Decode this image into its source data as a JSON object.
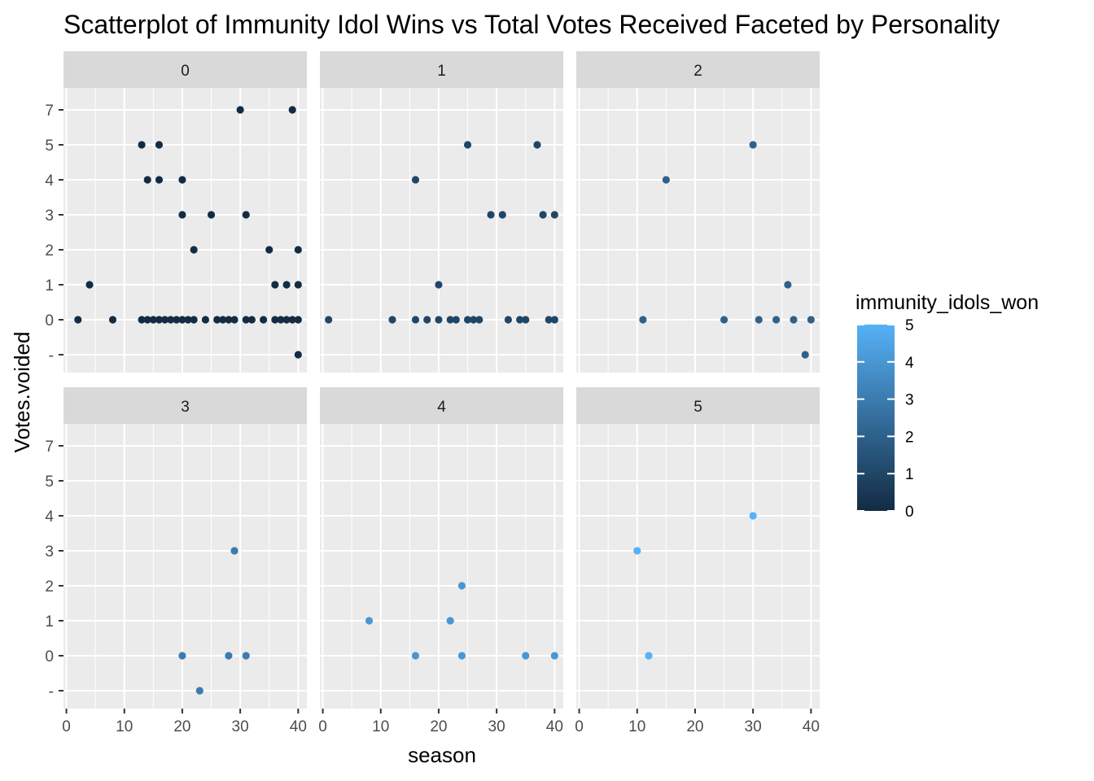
{
  "chart_data": {
    "type": "scatter",
    "title": "Scatterplot of Immunity Idol Wins vs Total Votes Received Faceted by Personality",
    "xlabel": "season",
    "ylabel": "Votes.voided",
    "xlim": [
      -0.5,
      41.5
    ],
    "x_ticks": [
      0,
      10,
      20,
      30,
      40
    ],
    "y_ticks": [
      {
        "value": -1,
        "label": "-"
      },
      {
        "value": 0,
        "label": "0"
      },
      {
        "value": 1,
        "label": "1"
      },
      {
        "value": 2,
        "label": "2"
      },
      {
        "value": 3,
        "label": "3"
      },
      {
        "value": 4,
        "label": "4"
      },
      {
        "value": 5,
        "label": "5"
      },
      {
        "value": 7,
        "label": "7"
      }
    ],
    "y_levels": [
      -1,
      0,
      1,
      2,
      3,
      4,
      5,
      7
    ],
    "grid": true,
    "legend": {
      "title": "immunity_idols_won",
      "placement": "right",
      "min": 0,
      "max": 5,
      "ticks": [
        0,
        1,
        2,
        3,
        4,
        5
      ],
      "low_color": "#132B43",
      "high_color": "#56B1F7"
    },
    "colors": {
      "panel_bg": "#EBEBEB",
      "strip_bg": "#D9D9D9",
      "grid": "#FFFFFF"
    },
    "facets": [
      {
        "label": "0",
        "color_value": 0,
        "points": [
          {
            "x": 2,
            "y": 0
          },
          {
            "x": 4,
            "y": 1
          },
          {
            "x": 8,
            "y": 0
          },
          {
            "x": 13,
            "y": 5
          },
          {
            "x": 13,
            "y": 0
          },
          {
            "x": 14,
            "y": 4
          },
          {
            "x": 14,
            "y": 0
          },
          {
            "x": 15,
            "y": 0
          },
          {
            "x": 16,
            "y": 5
          },
          {
            "x": 16,
            "y": 4
          },
          {
            "x": 16,
            "y": 0
          },
          {
            "x": 17,
            "y": 0
          },
          {
            "x": 18,
            "y": 0
          },
          {
            "x": 19,
            "y": 0
          },
          {
            "x": 20,
            "y": 4
          },
          {
            "x": 20,
            "y": 3
          },
          {
            "x": 20,
            "y": 0
          },
          {
            "x": 21,
            "y": 0
          },
          {
            "x": 22,
            "y": 2
          },
          {
            "x": 22,
            "y": 0
          },
          {
            "x": 24,
            "y": 0
          },
          {
            "x": 25,
            "y": 3
          },
          {
            "x": 26,
            "y": 0
          },
          {
            "x": 27,
            "y": 0
          },
          {
            "x": 28,
            "y": 0
          },
          {
            "x": 29,
            "y": 0
          },
          {
            "x": 30,
            "y": 7
          },
          {
            "x": 31,
            "y": 3
          },
          {
            "x": 31,
            "y": 0
          },
          {
            "x": 32,
            "y": 0
          },
          {
            "x": 34,
            "y": 0
          },
          {
            "x": 35,
            "y": 2
          },
          {
            "x": 36,
            "y": 1
          },
          {
            "x": 36,
            "y": 0
          },
          {
            "x": 37,
            "y": 0
          },
          {
            "x": 38,
            "y": 1
          },
          {
            "x": 38,
            "y": 0
          },
          {
            "x": 39,
            "y": 7
          },
          {
            "x": 39,
            "y": 0
          },
          {
            "x": 40,
            "y": 2
          },
          {
            "x": 40,
            "y": 1
          },
          {
            "x": 40,
            "y": 0
          },
          {
            "x": 40,
            "y": -1
          }
        ]
      },
      {
        "label": "1",
        "color_value": 1,
        "points": [
          {
            "x": 1,
            "y": 0
          },
          {
            "x": 12,
            "y": 0
          },
          {
            "x": 16,
            "y": 4
          },
          {
            "x": 16,
            "y": 0
          },
          {
            "x": 18,
            "y": 0
          },
          {
            "x": 20,
            "y": 1
          },
          {
            "x": 20,
            "y": 0
          },
          {
            "x": 22,
            "y": 0
          },
          {
            "x": 23,
            "y": 0
          },
          {
            "x": 25,
            "y": 5
          },
          {
            "x": 25,
            "y": 0
          },
          {
            "x": 26,
            "y": 0
          },
          {
            "x": 27,
            "y": 0
          },
          {
            "x": 29,
            "y": 3
          },
          {
            "x": 31,
            "y": 3
          },
          {
            "x": 32,
            "y": 0
          },
          {
            "x": 34,
            "y": 0
          },
          {
            "x": 35,
            "y": 0
          },
          {
            "x": 37,
            "y": 5
          },
          {
            "x": 38,
            "y": 3
          },
          {
            "x": 39,
            "y": 0
          },
          {
            "x": 40,
            "y": 3
          },
          {
            "x": 40,
            "y": 0
          }
        ]
      },
      {
        "label": "2",
        "color_value": 2,
        "points": [
          {
            "x": 11,
            "y": 0
          },
          {
            "x": 15,
            "y": 4
          },
          {
            "x": 25,
            "y": 0
          },
          {
            "x": 30,
            "y": 5
          },
          {
            "x": 31,
            "y": 0
          },
          {
            "x": 34,
            "y": 0
          },
          {
            "x": 36,
            "y": 1
          },
          {
            "x": 37,
            "y": 0
          },
          {
            "x": 39,
            "y": -1
          },
          {
            "x": 40,
            "y": 0
          }
        ]
      },
      {
        "label": "3",
        "color_value": 3,
        "points": [
          {
            "x": 20,
            "y": 0
          },
          {
            "x": 23,
            "y": -1
          },
          {
            "x": 28,
            "y": 0
          },
          {
            "x": 29,
            "y": 3
          },
          {
            "x": 31,
            "y": 0
          }
        ]
      },
      {
        "label": "4",
        "color_value": 4,
        "points": [
          {
            "x": 8,
            "y": 1
          },
          {
            "x": 16,
            "y": 0
          },
          {
            "x": 22,
            "y": 1
          },
          {
            "x": 24,
            "y": 2
          },
          {
            "x": 24,
            "y": 0
          },
          {
            "x": 35,
            "y": 0
          },
          {
            "x": 40,
            "y": 0
          }
        ]
      },
      {
        "label": "5",
        "color_value": 5,
        "points": [
          {
            "x": 10,
            "y": 3
          },
          {
            "x": 12,
            "y": 0
          },
          {
            "x": 30,
            "y": 4
          }
        ]
      }
    ]
  }
}
